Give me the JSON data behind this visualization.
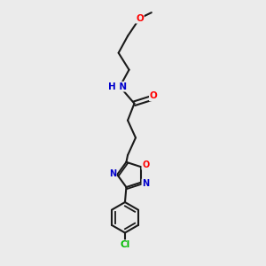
{
  "bg_color": "#ebebeb",
  "bond_color": "#1a1a1a",
  "atom_colors": {
    "O": "#ff0000",
    "N": "#0000cc",
    "Cl": "#00bb00",
    "H": "#4a9090",
    "C": "#1a1a1a"
  }
}
